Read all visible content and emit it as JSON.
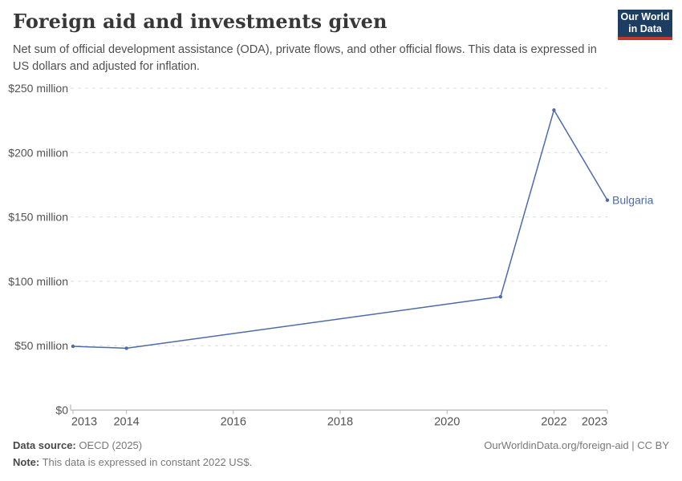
{
  "header": {
    "title": "Foreign aid and investments given",
    "subtitle": "Net sum of official development assistance (ODA), private flows, and other official flows. This data is expressed in US dollars and adjusted for inflation.",
    "logo": {
      "line1": "Our World",
      "line2": "in Data",
      "bg_color": "#1d3d63",
      "accent_color": "#c0392b"
    }
  },
  "chart_data": {
    "type": "line",
    "title": "Foreign aid and investments given",
    "entity": "Bulgaria",
    "unit": "constant 2022 US$, millions",
    "grid": "dashed-horizontal",
    "legend_position": "end-of-line-label",
    "series": [
      {
        "name": "Bulgaria",
        "color": "#4c6ba8",
        "points": [
          {
            "year": 2013,
            "value": 49.5
          },
          {
            "year": 2014,
            "value": 48
          },
          {
            "year": 2021,
            "value": 88
          },
          {
            "year": 2022,
            "value": 233
          },
          {
            "year": 2023,
            "value": 163
          }
        ]
      }
    ],
    "x_axis": {
      "min": 2013,
      "max": 2023,
      "ticks": [
        {
          "year": 2013,
          "label": "2013",
          "nudge": 14
        },
        {
          "year": 2014,
          "label": "2014",
          "nudge": 0
        },
        {
          "year": 2016,
          "label": "2016",
          "nudge": 0
        },
        {
          "year": 2018,
          "label": "2018",
          "nudge": 0
        },
        {
          "year": 2020,
          "label": "2020",
          "nudge": 0
        },
        {
          "year": 2022,
          "label": "2022",
          "nudge": 0
        },
        {
          "year": 2023,
          "label": "2023",
          "nudge": -16
        }
      ]
    },
    "y_axis": {
      "min": 0,
      "max": 250,
      "tick_step": 50,
      "tick_labels": [
        "$0",
        "$50 million",
        "$100 million",
        "$150 million",
        "$200 million",
        "$250 million"
      ]
    },
    "colors": {
      "gridline": "#dcdcdc",
      "axis_line": "#a8a8a8",
      "tick_mark": "#b8b8b8",
      "axis_text": "#525252"
    }
  },
  "footer": {
    "datasource_label": "Data source:",
    "datasource_value": " OECD (2025)",
    "link": "OurWorldinData.org/foreign-aid | CC BY",
    "note_label": "Note:",
    "note_value": " This data is expressed in constant 2022 US$."
  }
}
